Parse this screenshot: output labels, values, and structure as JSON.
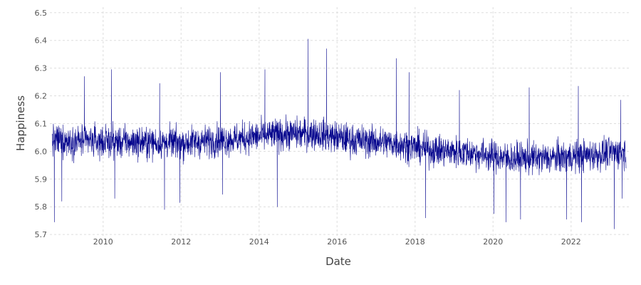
{
  "chart_data": {
    "type": "line",
    "title": "",
    "xlabel": "Date",
    "ylabel": "Happiness",
    "x_range": [
      "2008-09-10",
      "2023-06-01"
    ],
    "xlim": [
      "2008-08-20",
      "2023-07-10"
    ],
    "ylim": [
      5.69,
      6.52
    ],
    "x_ticks": [
      "2010",
      "2012",
      "2014",
      "2016",
      "2018",
      "2020",
      "2022"
    ],
    "y_ticks": [
      "5.7",
      "5.8",
      "5.9",
      "6.0",
      "6.1",
      "6.2",
      "6.3",
      "6.4",
      "6.5"
    ],
    "grid": true,
    "legend": "none",
    "line_color": "#00008b",
    "series": [
      {
        "values_note_keyframes": "level trend read from the plot by date",
        "trend": [
          {
            "x": "2008-09-10",
            "y": 6.04
          },
          {
            "x": "2010-01-01",
            "y": 6.035
          },
          {
            "x": "2012-01-01",
            "y": 6.03
          },
          {
            "x": "2013-06-01",
            "y": 6.045
          },
          {
            "x": "2014-06-01",
            "y": 6.06
          },
          {
            "x": "2015-06-01",
            "y": 6.065
          },
          {
            "x": "2016-06-01",
            "y": 6.04
          },
          {
            "x": "2017-06-01",
            "y": 6.03
          },
          {
            "x": "2018-06-01",
            "y": 6.005
          },
          {
            "x": "2019-06-01",
            "y": 5.995
          },
          {
            "x": "2020-06-01",
            "y": 5.975
          },
          {
            "x": "2021-06-01",
            "y": 5.975
          },
          {
            "x": "2022-06-01",
            "y": 5.985
          },
          {
            "x": "2023-06-01",
            "y": 6.0
          }
        ],
        "spikes": [
          {
            "x": "2008-10-01",
            "y": 5.745
          },
          {
            "x": "2008-12-10",
            "y": 5.82
          },
          {
            "x": "2009-07-10",
            "y": 6.27
          },
          {
            "x": "2010-03-20",
            "y": 6.295
          },
          {
            "x": "2010-04-20",
            "y": 5.83
          },
          {
            "x": "2011-06-15",
            "y": 6.245
          },
          {
            "x": "2011-07-30",
            "y": 5.79
          },
          {
            "x": "2011-12-20",
            "y": 5.815
          },
          {
            "x": "2013-01-05",
            "y": 6.285
          },
          {
            "x": "2013-01-25",
            "y": 5.845
          },
          {
            "x": "2014-02-25",
            "y": 6.295
          },
          {
            "x": "2014-06-20",
            "y": 5.8
          },
          {
            "x": "2015-04-05",
            "y": 6.405
          },
          {
            "x": "2015-09-25",
            "y": 6.37
          },
          {
            "x": "2017-07-10",
            "y": 6.335
          },
          {
            "x": "2017-11-05",
            "y": 6.285
          },
          {
            "x": "2018-04-10",
            "y": 5.76
          },
          {
            "x": "2019-02-20",
            "y": 6.22
          },
          {
            "x": "2020-01-10",
            "y": 5.775
          },
          {
            "x": "2020-05-01",
            "y": 5.745
          },
          {
            "x": "2020-09-15",
            "y": 5.755
          },
          {
            "x": "2020-12-05",
            "y": 6.23
          },
          {
            "x": "2021-11-20",
            "y": 5.755
          },
          {
            "x": "2022-03-10",
            "y": 6.235
          },
          {
            "x": "2022-04-10",
            "y": 5.745
          },
          {
            "x": "2023-02-10",
            "y": 5.72
          },
          {
            "x": "2023-04-10",
            "y": 6.185
          },
          {
            "x": "2023-04-25",
            "y": 5.83
          }
        ]
      }
    ]
  }
}
